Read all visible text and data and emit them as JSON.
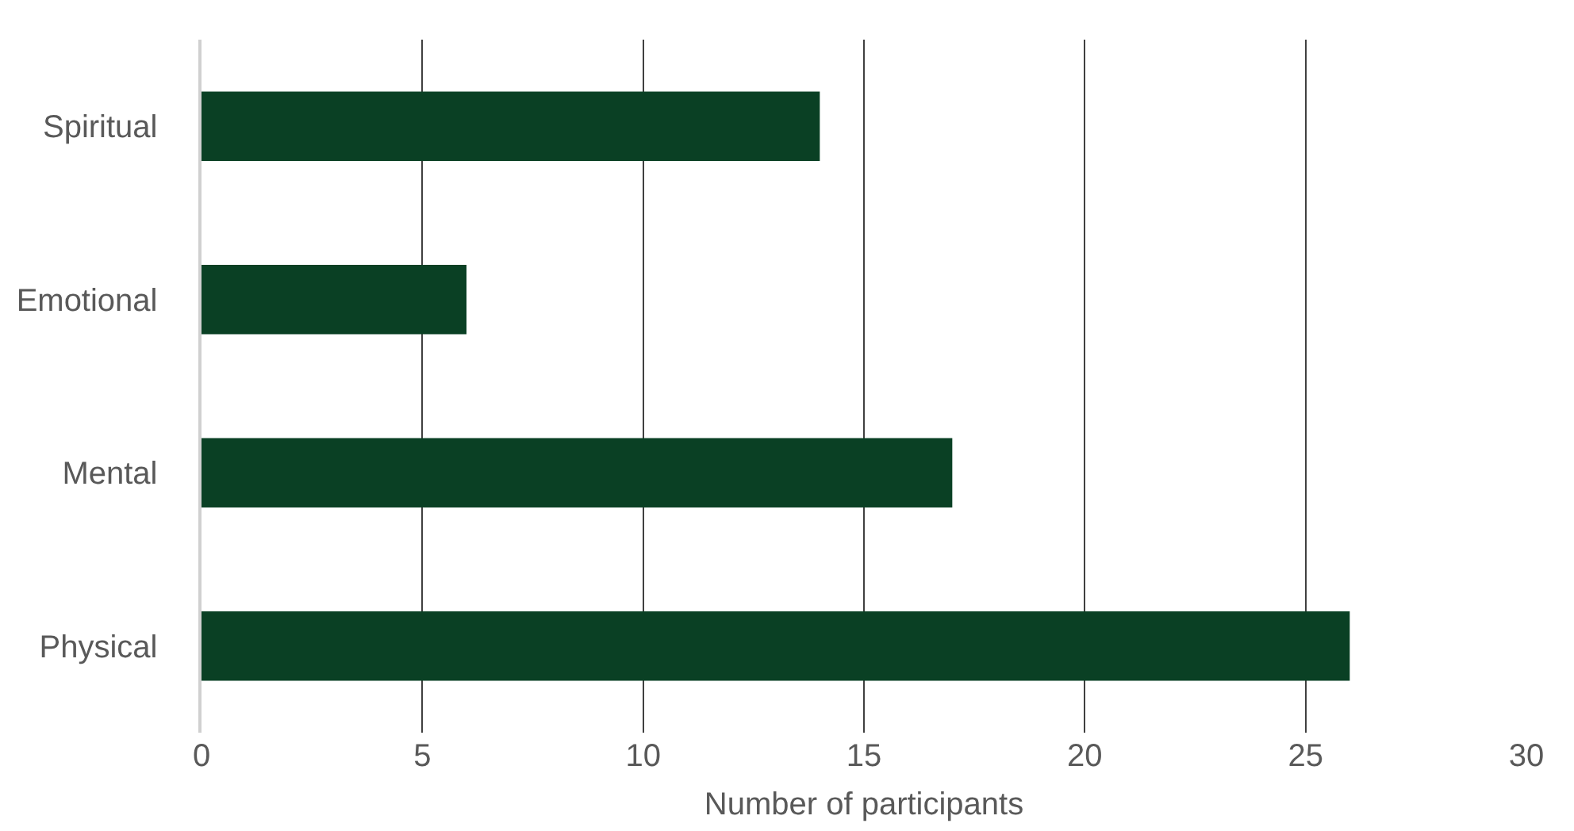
{
  "chart_data": {
    "type": "bar",
    "orientation": "horizontal",
    "categories": [
      "Spiritual",
      "Emotional",
      "Mental",
      "Physical"
    ],
    "values": [
      14,
      6,
      17,
      26
    ],
    "color": "#0a4024",
    "xlabel": "Number of participants",
    "xlim": [
      0,
      30
    ],
    "xticks": [
      0,
      5,
      10,
      15,
      20,
      25,
      30
    ],
    "grid": "x",
    "legend": false
  }
}
